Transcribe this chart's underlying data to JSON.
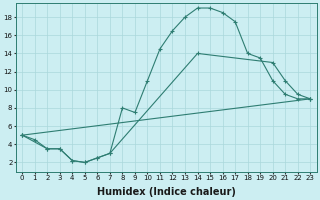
{
  "xlabel": "Humidex (Indice chaleur)",
  "xlim": [
    -0.5,
    23.5
  ],
  "ylim": [
    1,
    19.5
  ],
  "bg_color": "#cceef2",
  "grid_color": "#aad8dc",
  "line_color": "#2e7d72",
  "line1_x": [
    0,
    1,
    2,
    3,
    4,
    5,
    6,
    7,
    8,
    9,
    10,
    11,
    12,
    13,
    14,
    15,
    16,
    17,
    18,
    19,
    20,
    21,
    22,
    23
  ],
  "line1_y": [
    5.0,
    4.5,
    3.5,
    3.5,
    2.2,
    2.0,
    2.5,
    3.0,
    8.0,
    7.5,
    11.0,
    14.5,
    16.5,
    18.0,
    19.0,
    19.0,
    18.5,
    17.5,
    14.0,
    13.5,
    11.0,
    9.5,
    9.0,
    9.0
  ],
  "line2_x": [
    0,
    2,
    3,
    4,
    5,
    6,
    7,
    14,
    20,
    21,
    22,
    23
  ],
  "line2_y": [
    5.0,
    3.5,
    3.5,
    2.2,
    2.0,
    2.5,
    3.0,
    14.0,
    13.0,
    11.0,
    9.5,
    9.0
  ],
  "line3_x": [
    0,
    23
  ],
  "line3_y": [
    5.0,
    9.0
  ],
  "ytick_values": [
    2,
    4,
    6,
    8,
    10,
    12,
    14,
    16,
    18
  ],
  "xtick_labels": [
    "0",
    "1",
    "2",
    "3",
    "4",
    "5",
    "6",
    "7",
    "8",
    "9",
    "10",
    "11",
    "12",
    "13",
    "14",
    "15",
    "16",
    "17",
    "18",
    "19",
    "20",
    "21",
    "22",
    "23"
  ],
  "xlabel_fontsize": 7,
  "tick_fontsize": 5,
  "dpi": 100
}
